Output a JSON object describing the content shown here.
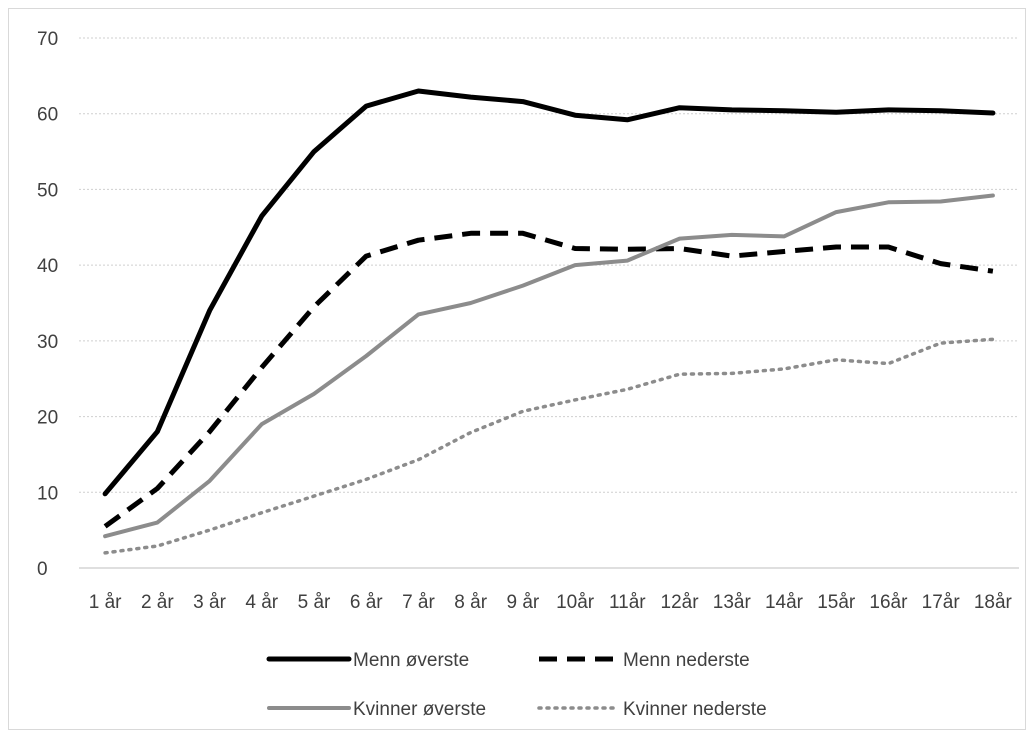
{
  "chart_data": {
    "type": "line",
    "title": "",
    "xlabel": "",
    "ylabel": "",
    "categories": [
      "1 år",
      "2 år",
      "3 år",
      "4 år",
      "5 år",
      "6 år",
      "7 år",
      "8 år",
      "9 år",
      "10år",
      "11år",
      "12år",
      "13år",
      "14år",
      "15år",
      "16år",
      "17år",
      "18år"
    ],
    "ylim": [
      0,
      70
    ],
    "yticks": [
      0,
      10,
      20,
      30,
      40,
      50,
      60,
      70
    ],
    "grid": true,
    "legend_position": "bottom",
    "series": [
      {
        "name": "Menn øverste",
        "style": "solid-thick",
        "color": "#000000",
        "values": [
          9.8,
          18,
          34,
          46.5,
          55,
          61,
          63,
          62.2,
          61.6,
          59.8,
          59.2,
          60.8,
          60.5,
          60.4,
          60.2,
          60.5,
          60.4,
          60.1
        ]
      },
      {
        "name": "Menn nederste",
        "style": "dashed",
        "color": "#000000",
        "values": [
          5.5,
          10.5,
          18,
          26.5,
          34.5,
          41.2,
          43.3,
          44.2,
          44.2,
          42.2,
          42.1,
          42.2,
          41.2,
          41.8,
          42.4,
          42.4,
          40.2,
          39.2
        ]
      },
      {
        "name": "Kvinner øverste",
        "style": "solid-gray",
        "color": "#8c8c8c",
        "values": [
          4.2,
          6,
          11.5,
          19,
          23,
          28,
          33.5,
          35,
          37.3,
          40,
          40.6,
          43.5,
          44,
          43.8,
          47,
          48.3,
          48.4,
          49.2
        ]
      },
      {
        "name": "Kvinner nederste",
        "style": "dotted",
        "color": "#8c8c8c",
        "values": [
          2,
          2.9,
          5,
          7.3,
          9.5,
          11.7,
          14.3,
          17.9,
          20.7,
          22.2,
          23.6,
          25.6,
          25.7,
          26.3,
          27.5,
          27,
          29.7,
          30.2
        ]
      }
    ]
  }
}
